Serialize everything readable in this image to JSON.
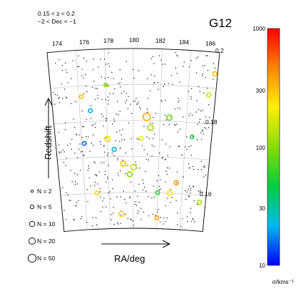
{
  "chart_data": {
    "type": "scatter",
    "panel_label": "G12",
    "cuts": [
      "0.15 < z < 0.2",
      "−2 < Dec < −1"
    ],
    "xlabel": "RA/deg",
    "ylabel": "Redshift",
    "ra_ticks": [
      174,
      176,
      178,
      180,
      182,
      184,
      186
    ],
    "z_ticks": [
      "0.2",
      "0.18",
      "0.16"
    ],
    "z_range": [
      0.15,
      0.2
    ],
    "ra_range": [
      174,
      186
    ],
    "colorbar": {
      "label": "σ/kms⁻¹",
      "scale": "log",
      "range": [
        10,
        1000
      ],
      "ticks": [
        "1000",
        "300",
        "100",
        "30",
        "10"
      ],
      "colors": [
        "#ff0000",
        "#ff8800",
        "#ffee00",
        "#88dd00",
        "#00cc44",
        "#00bbee",
        "#0000ff"
      ]
    },
    "size_legend": [
      "N = 2",
      "N = 5",
      "N = 10",
      "N = 20",
      "N = 50"
    ],
    "size_legend_n": [
      2,
      5,
      10,
      20,
      50
    ],
    "groups": [
      {
        "ra": 181.0,
        "z": 0.181,
        "n": 25,
        "sigma": 350
      },
      {
        "ra": 181.3,
        "z": 0.178,
        "n": 12,
        "sigma": 120
      },
      {
        "ra": 182.7,
        "z": 0.181,
        "n": 10,
        "sigma": 80
      },
      {
        "ra": 178.0,
        "z": 0.175,
        "n": 10,
        "sigma": 250
      },
      {
        "ra": 178.5,
        "z": 0.172,
        "n": 5,
        "sigma": 20
      },
      {
        "ra": 179.2,
        "z": 0.168,
        "n": 9,
        "sigma": 300
      },
      {
        "ra": 180.0,
        "z": 0.167,
        "n": 12,
        "sigma": 150
      },
      {
        "ra": 179.7,
        "z": 0.165,
        "n": 8,
        "sigma": 100
      },
      {
        "ra": 183.5,
        "z": 0.163,
        "n": 6,
        "sigma": 400
      },
      {
        "ra": 183.0,
        "z": 0.16,
        "n": 8,
        "sigma": 200
      },
      {
        "ra": 177.0,
        "z": 0.16,
        "n": 5,
        "sigma": 250
      },
      {
        "ra": 185.5,
        "z": 0.158,
        "n": 6,
        "sigma": 120
      },
      {
        "ra": 182.0,
        "z": 0.16,
        "n": 4,
        "sigma": 60
      },
      {
        "ra": 179.0,
        "z": 0.154,
        "n": 10,
        "sigma": 250
      },
      {
        "ra": 182.0,
        "z": 0.153,
        "n": 4,
        "sigma": 400
      },
      {
        "ra": 185.8,
        "z": 0.194,
        "n": 6,
        "sigma": 300
      },
      {
        "ra": 185.5,
        "z": 0.188,
        "n": 5,
        "sigma": 150
      },
      {
        "ra": 176.2,
        "z": 0.187,
        "n": 4,
        "sigma": 300
      },
      {
        "ra": 176.8,
        "z": 0.183,
        "n": 4,
        "sigma": 20
      },
      {
        "ra": 178.0,
        "z": 0.19,
        "n": 3,
        "sigma": 100
      },
      {
        "ra": 176.2,
        "z": 0.174,
        "n": 4,
        "sigma": 15
      },
      {
        "ra": 184.5,
        "z": 0.176,
        "n": 3,
        "sigma": 50
      },
      {
        "ra": 180.6,
        "z": 0.175,
        "n": 4,
        "sigma": 200
      }
    ]
  }
}
